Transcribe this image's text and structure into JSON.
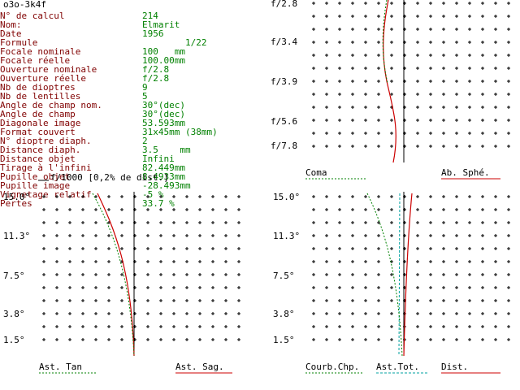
{
  "title": "o3o-3k4f",
  "params": [
    {
      "label": "N° de calcul",
      "value": "214"
    },
    {
      "label": "Nom:",
      "value": "Elmarit"
    },
    {
      "label": "Date",
      "value": "1956"
    },
    {
      "label": "Formule",
      "value": "        1/22"
    },
    {
      "label": "Focale nominale",
      "value": "100   mm"
    },
    {
      "label": "Focale réelle",
      "value": "100.00mm"
    },
    {
      "label": "Ouverture nominale",
      "value": "f/2.8"
    },
    {
      "label": "Ouverture réelle",
      "value": "f/2.8"
    },
    {
      "label": "Nb de dioptres",
      "value": "9"
    },
    {
      "label": "Nb de lentilles",
      "value": "5"
    },
    {
      "label": "Angle de champ nom.",
      "value": "30°(dec)"
    },
    {
      "label": "Angle de champ",
      "value": "30°(dec)"
    },
    {
      "label": "Diagonale image",
      "value": "53.593mm"
    },
    {
      "label": "Format couvert",
      "value": "31x45mm (38mm)"
    },
    {
      "label": "N° dioptre diaph.",
      "value": "2"
    },
    {
      "label": "Distance diaph.",
      "value": "3.5    mm"
    },
    {
      "label": "Distance objet",
      "value": "Infini"
    },
    {
      "label": "Tirage à l'infini",
      "value": "82.449mm"
    },
    {
      "label": "Pupille objet",
      "value": "8.4933mm"
    },
    {
      "label": "Pupille image",
      "value": "-28.493mm"
    },
    {
      "label": "Vignetage relatif",
      "value": "-5 %"
    },
    {
      "label": "Pertes",
      "value": "33.7 %"
    }
  ],
  "scale_note": "f/1000 [0,2% de dist.]",
  "colors": {
    "label": "#800000",
    "value": "#008000",
    "red": "#cc0000",
    "green": "#008000",
    "cyan": "#00a0a0"
  },
  "plots": {
    "spherical": {
      "ticks": [
        "f/2.8",
        "f/3.4",
        "f/3.9",
        "f/5.6",
        "f/7.8"
      ],
      "legend_left": "Coma",
      "legend_right": "Ab. Sphé."
    },
    "tangential": {
      "ticks": [
        "15.0°",
        "11.3°",
        "7.5°",
        "3.8°",
        "1.5°"
      ],
      "legend_left": "Ast. Tan",
      "legend_right": "Ast. Sag."
    },
    "astigmatism": {
      "ticks": [
        "15.0°",
        "11.3°",
        "7.5°",
        "3.8°",
        "1.5°"
      ],
      "legend_left": "Courb.Chp.",
      "legend_mid": "Ast.Tot.",
      "legend_right": "Dist."
    }
  }
}
